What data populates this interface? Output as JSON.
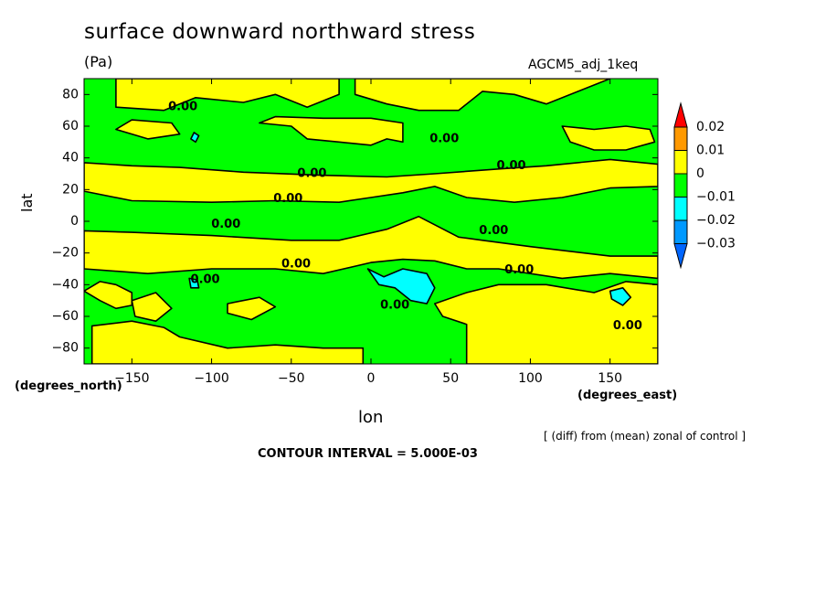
{
  "page": {
    "title": "surface downward northward stress",
    "units": "(Pa)",
    "run_label": "AGCM5_adj_1keq",
    "y_title": "lat",
    "y_units": "(degrees_north)",
    "x_title": "lon",
    "x_units": "(degrees_east)",
    "note": "[ (diff) from (mean) zonal of control ]",
    "contour_interval": "CONTOUR INTERVAL = 5.000E-03"
  },
  "chart_data": {
    "type": "heatmap",
    "title": "surface downward northward stress",
    "subtitle": "(Pa)",
    "xlabel": "lon",
    "ylabel": "lat",
    "xlim": [
      -180,
      180
    ],
    "ylim": [
      -90,
      90
    ],
    "x_ticks": [
      -150,
      -100,
      -50,
      0,
      50,
      100,
      150
    ],
    "y_ticks": [
      80,
      60,
      40,
      20,
      0,
      -20,
      -40,
      -60,
      -80
    ],
    "background_value": -0.005,
    "levels": [
      {
        "range": "> 0.02",
        "color": "#ff0000"
      },
      {
        "range": "0.01 to 0.02",
        "color": "#ff9900"
      },
      {
        "range": "0 to 0.01",
        "color": "#ffff00"
      },
      {
        "range": "-0.01 to 0",
        "color": "#00ff00"
      },
      {
        "range": "-0.02 to -0.01",
        "color": "#00ffff"
      },
      {
        "range": "-0.03 to -0.02",
        "color": "#0099ff"
      },
      {
        "range": "< -0.03",
        "color": "#0066ff"
      }
    ],
    "colorbar_labels": [
      "0.02",
      "0.01",
      "0",
      "-0.01",
      "-0.02",
      "-0.03"
    ],
    "regions": [
      {
        "value": 0.004,
        "points": [
          [
            -180,
            19
          ],
          [
            -150,
            13
          ],
          [
            -100,
            12
          ],
          [
            -60,
            13
          ],
          [
            -20,
            12
          ],
          [
            0,
            15
          ],
          [
            20,
            18
          ],
          [
            40,
            22
          ],
          [
            60,
            15
          ],
          [
            90,
            12
          ],
          [
            120,
            15
          ],
          [
            150,
            21
          ],
          [
            180,
            22
          ],
          [
            180,
            36
          ],
          [
            150,
            39
          ],
          [
            110,
            35
          ],
          [
            80,
            33
          ],
          [
            40,
            30
          ],
          [
            10,
            28
          ],
          [
            -30,
            29
          ],
          [
            -80,
            31
          ],
          [
            -120,
            34
          ],
          [
            -150,
            35
          ],
          [
            -180,
            37
          ]
        ]
      },
      {
        "value": 0.004,
        "points": [
          [
            -180,
            -6
          ],
          [
            -150,
            -7
          ],
          [
            -100,
            -9
          ],
          [
            -50,
            -12
          ],
          [
            -20,
            -12
          ],
          [
            10,
            -5
          ],
          [
            30,
            3
          ],
          [
            55,
            -10
          ],
          [
            70,
            -12
          ],
          [
            100,
            -16
          ],
          [
            150,
            -22
          ],
          [
            180,
            -22
          ],
          [
            180,
            -36
          ],
          [
            150,
            -33
          ],
          [
            120,
            -36
          ],
          [
            80,
            -30
          ],
          [
            60,
            -30
          ],
          [
            40,
            -25
          ],
          [
            20,
            -24
          ],
          [
            0,
            -26
          ],
          [
            -30,
            -33
          ],
          [
            -60,
            -30
          ],
          [
            -100,
            -30
          ],
          [
            -140,
            -33
          ],
          [
            -180,
            -30
          ]
        ]
      },
      {
        "value": 0.004,
        "points": [
          [
            -180,
            -44
          ],
          [
            -170,
            -50
          ],
          [
            -160,
            -55
          ],
          [
            -150,
            -53
          ],
          [
            -150,
            -45
          ],
          [
            -160,
            -40
          ],
          [
            -170,
            -38
          ]
        ]
      },
      {
        "value": 0.004,
        "points": [
          [
            -175,
            -66
          ],
          [
            -150,
            -63
          ],
          [
            -130,
            -67
          ],
          [
            -120,
            -73
          ],
          [
            -90,
            -80
          ],
          [
            -60,
            -78
          ],
          [
            -30,
            -80
          ],
          [
            -5,
            -80
          ],
          [
            -5,
            -90
          ],
          [
            -175,
            -90
          ]
        ]
      },
      {
        "value": 0.004,
        "points": [
          [
            -150,
            -50
          ],
          [
            -135,
            -45
          ],
          [
            -125,
            -55
          ],
          [
            -135,
            -63
          ],
          [
            -148,
            -60
          ]
        ]
      },
      {
        "value": 0.004,
        "points": [
          [
            -90,
            -52
          ],
          [
            -70,
            -48
          ],
          [
            -60,
            -54
          ],
          [
            -75,
            -62
          ],
          [
            -90,
            -58
          ]
        ]
      },
      {
        "value": 0.004,
        "points": [
          [
            40,
            -52
          ],
          [
            60,
            -45
          ],
          [
            80,
            -40
          ],
          [
            110,
            -40
          ],
          [
            140,
            -45
          ],
          [
            160,
            -38
          ],
          [
            180,
            -40
          ],
          [
            180,
            -90
          ],
          [
            60,
            -90
          ],
          [
            60,
            -65
          ],
          [
            45,
            -60
          ]
        ]
      },
      {
        "value": 0.004,
        "points": [
          [
            -160,
            72
          ],
          [
            -130,
            70
          ],
          [
            -110,
            78
          ],
          [
            -80,
            75
          ],
          [
            -60,
            80
          ],
          [
            -40,
            72
          ],
          [
            -20,
            80
          ],
          [
            -20,
            90
          ],
          [
            -160,
            90
          ]
        ]
      },
      {
        "value": 0.004,
        "points": [
          [
            -10,
            80
          ],
          [
            10,
            74
          ],
          [
            30,
            70
          ],
          [
            55,
            70
          ],
          [
            70,
            82
          ],
          [
            90,
            80
          ],
          [
            110,
            74
          ],
          [
            130,
            82
          ],
          [
            150,
            90
          ],
          [
            -10,
            90
          ]
        ]
      },
      {
        "value": 0.004,
        "points": [
          [
            -70,
            62
          ],
          [
            -50,
            60
          ],
          [
            -40,
            52
          ],
          [
            -20,
            50
          ],
          [
            0,
            48
          ],
          [
            10,
            52
          ],
          [
            20,
            50
          ],
          [
            20,
            62
          ],
          [
            0,
            65
          ],
          [
            -30,
            65
          ],
          [
            -60,
            66
          ]
        ]
      },
      {
        "value": 0.004,
        "points": [
          [
            120,
            60
          ],
          [
            140,
            58
          ],
          [
            160,
            60
          ],
          [
            175,
            58
          ],
          [
            178,
            50
          ],
          [
            160,
            45
          ],
          [
            140,
            45
          ],
          [
            125,
            50
          ]
        ]
      },
      {
        "value": 0.004,
        "points": [
          [
            -160,
            58
          ],
          [
            -140,
            52
          ],
          [
            -120,
            55
          ],
          [
            -125,
            62
          ],
          [
            -150,
            64
          ]
        ]
      },
      {
        "value": -0.012,
        "points": [
          [
            -2,
            -30
          ],
          [
            8,
            -35
          ],
          [
            20,
            -30
          ],
          [
            35,
            -33
          ],
          [
            40,
            -42
          ],
          [
            35,
            -52
          ],
          [
            25,
            -50
          ],
          [
            15,
            -42
          ],
          [
            5,
            -40
          ]
        ]
      },
      {
        "value": -0.012,
        "points": [
          [
            -114,
            -36
          ],
          [
            -109,
            -37
          ],
          [
            -108,
            -42
          ],
          [
            -113,
            -42
          ]
        ]
      },
      {
        "value": -0.012,
        "points": [
          [
            150,
            -44
          ],
          [
            158,
            -42
          ],
          [
            163,
            -48
          ],
          [
            158,
            -53
          ],
          [
            151,
            -49
          ]
        ]
      },
      {
        "value": -0.012,
        "points": [
          [
            -113,
            52
          ],
          [
            -110,
            50
          ],
          [
            -108,
            54
          ],
          [
            -111,
            56
          ]
        ]
      }
    ],
    "contour_labels": [
      {
        "text": "0.00",
        "lon": -118,
        "lat": 72
      },
      {
        "text": "0.00",
        "lon": 46,
        "lat": 52
      },
      {
        "text": "0.00",
        "lon": -37,
        "lat": 30
      },
      {
        "text": "0.00",
        "lon": 88,
        "lat": 35
      },
      {
        "text": "0.00",
        "lon": -52,
        "lat": 14
      },
      {
        "text": "0.00",
        "lon": -91,
        "lat": -2
      },
      {
        "text": "0.00",
        "lon": 77,
        "lat": -6
      },
      {
        "text": "0.00",
        "lon": -47,
        "lat": -27
      },
      {
        "text": "0.00",
        "lon": 93,
        "lat": -31
      },
      {
        "text": "0.00",
        "lon": -104,
        "lat": -37
      },
      {
        "text": "0.00",
        "lon": 15,
        "lat": -53
      },
      {
        "text": "0.00",
        "lon": 161,
        "lat": -66
      }
    ]
  }
}
